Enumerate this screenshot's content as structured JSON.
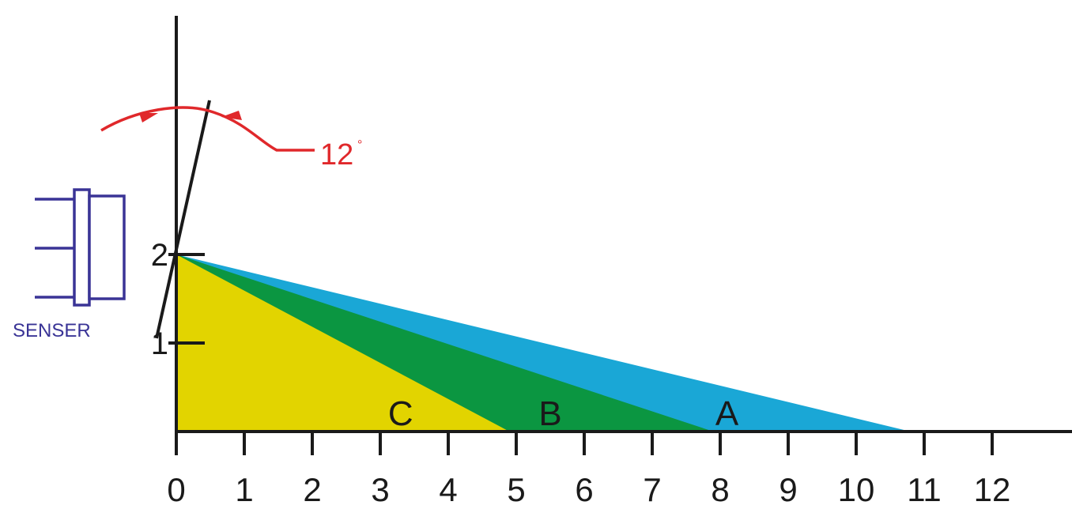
{
  "chart_data": {
    "type": "area",
    "x_ticks": [
      "0",
      "1",
      "2",
      "3",
      "4",
      "5",
      "6",
      "7",
      "8",
      "9",
      "10",
      "11",
      "12"
    ],
    "y_ticks": [
      "1",
      "2"
    ],
    "xlim": [
      0,
      12
    ],
    "ylim": [
      0,
      2
    ],
    "zones": [
      {
        "label": "A",
        "from": [
          0,
          2
        ],
        "to": [
          10.8,
          0
        ],
        "color": "#1aa7d6"
      },
      {
        "label": "B",
        "from": [
          0,
          2
        ],
        "to": [
          7.9,
          0
        ],
        "color": "#0b9641"
      },
      {
        "label": "C",
        "from": [
          0,
          2
        ],
        "to": [
          4.9,
          0
        ],
        "color": "#e2d400"
      }
    ],
    "annotation": {
      "angle_label": "12",
      "degree_mark": "°",
      "color": "#e0282b"
    },
    "sensor": {
      "label": "SENSER",
      "color": "#3a3496"
    }
  }
}
